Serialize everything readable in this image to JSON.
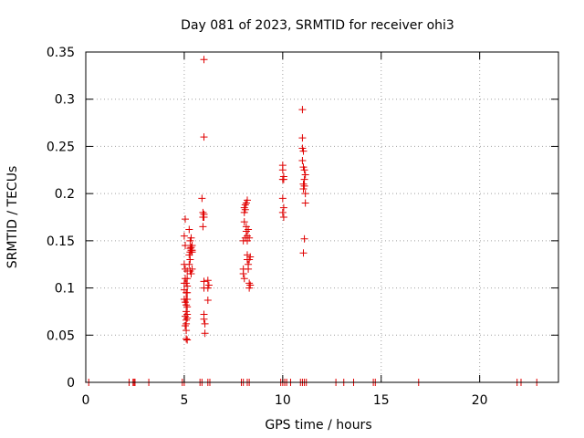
{
  "chart_data": {
    "type": "scatter",
    "title": "Day 081 of 2023, SRMTID for receiver ohi3",
    "xlabel": "GPS time / hours",
    "ylabel": "SRMTID / TECUs",
    "xlim": [
      0,
      24
    ],
    "ylim": [
      0,
      0.35
    ],
    "xticks": [
      0,
      5,
      10,
      15,
      20
    ],
    "xtick_labels": [
      "0",
      "5",
      "10",
      "15",
      "20"
    ],
    "yticks": [
      0,
      0.05,
      0.1,
      0.15,
      0.2,
      0.25,
      0.3,
      0.35
    ],
    "ytick_labels": [
      "0",
      "0.05",
      "0.1",
      "0.15",
      "0.2",
      "0.25",
      "0.3",
      "0.35"
    ],
    "grid": true,
    "marker": "+",
    "color": "#e00000",
    "series": [
      {
        "name": "SRMTID",
        "x": [
          5.0,
          5.0,
          5.0,
          5.0,
          5.0,
          5.05,
          5.05,
          5.05,
          5.05,
          5.05,
          5.05,
          5.05,
          5.1,
          5.1,
          5.1,
          5.1,
          5.1,
          5.1,
          5.1,
          5.1,
          5.1,
          5.15,
          5.15,
          5.15,
          5.15,
          5.15,
          5.15,
          5.15,
          5.15,
          5.15,
          5.25,
          5.25,
          5.25,
          5.3,
          5.3,
          5.3,
          5.3,
          5.3,
          5.35,
          5.35,
          5.35,
          5.35,
          5.4,
          5.4,
          5.4,
          5.4,
          5.9,
          5.95,
          5.95,
          5.95,
          6.0,
          6.0,
          6.0,
          6.0,
          6.0,
          6.0,
          6.0,
          6.0,
          6.05,
          6.05,
          6.2,
          6.2,
          6.2,
          6.25,
          8.0,
          8.0,
          8.0,
          8.05,
          8.05,
          8.05,
          8.05,
          8.1,
          8.1,
          8.1,
          8.15,
          8.15,
          8.15,
          8.2,
          8.2,
          8.2,
          8.2,
          8.2,
          8.25,
          8.25,
          8.25,
          8.3,
          8.3,
          8.3,
          8.3,
          8.35,
          8.35,
          10.0,
          10.0,
          10.0,
          10.0,
          10.0,
          10.05,
          10.05,
          10.05,
          10.05,
          11.0,
          11.0,
          11.0,
          11.0,
          11.05,
          11.05,
          11.05,
          11.05,
          11.05,
          11.1,
          11.1,
          11.1,
          11.1,
          11.15,
          11.15,
          11.15,
          0.15,
          2.2,
          2.4,
          2.45,
          2.5,
          3.2,
          4.9,
          5.0,
          5.8,
          5.9,
          6.2,
          6.3,
          7.9,
          8.0,
          8.2,
          8.3,
          9.9,
          10.0,
          10.1,
          10.2,
          10.4,
          10.9,
          11.0,
          11.1,
          11.2,
          12.7,
          13.1,
          13.6,
          14.6,
          14.7,
          16.9,
          21.9,
          22.1,
          22.9
        ],
        "y": [
          0.155,
          0.125,
          0.105,
          0.098,
          0.088,
          0.173,
          0.145,
          0.12,
          0.11,
          0.085,
          0.07,
          0.06,
          0.105,
          0.095,
          0.088,
          0.082,
          0.075,
          0.066,
          0.062,
          0.055,
          0.046,
          0.118,
          0.11,
          0.102,
          0.095,
          0.088,
          0.08,
          0.072,
          0.068,
          0.045,
          0.162,
          0.135,
          0.125,
          0.15,
          0.142,
          0.138,
          0.13,
          0.118,
          0.153,
          0.143,
          0.14,
          0.115,
          0.145,
          0.14,
          0.138,
          0.12,
          0.195,
          0.18,
          0.175,
          0.165,
          0.342,
          0.26,
          0.178,
          0.175,
          0.107,
          0.1,
          0.072,
          0.067,
          0.062,
          0.052,
          0.108,
          0.1,
          0.087,
          0.103,
          0.15,
          0.12,
          0.115,
          0.185,
          0.18,
          0.17,
          0.11,
          0.188,
          0.183,
          0.153,
          0.19,
          0.165,
          0.16,
          0.193,
          0.155,
          0.15,
          0.135,
          0.13,
          0.162,
          0.125,
          0.12,
          0.153,
          0.13,
          0.105,
          0.1,
          0.133,
          0.103,
          0.23,
          0.225,
          0.215,
          0.195,
          0.18,
          0.218,
          0.215,
          0.185,
          0.175,
          0.289,
          0.259,
          0.248,
          0.235,
          0.245,
          0.228,
          0.21,
          0.205,
          0.137,
          0.225,
          0.215,
          0.208,
          0.152,
          0.22,
          0.2,
          0.19,
          0,
          0,
          0,
          0,
          0,
          0,
          0,
          0,
          0,
          0,
          0,
          0,
          0,
          0,
          0,
          0,
          0,
          0,
          0,
          0,
          0,
          0,
          0,
          0,
          0,
          0,
          0,
          0,
          0,
          0,
          0,
          0,
          0,
          0
        ]
      }
    ]
  }
}
